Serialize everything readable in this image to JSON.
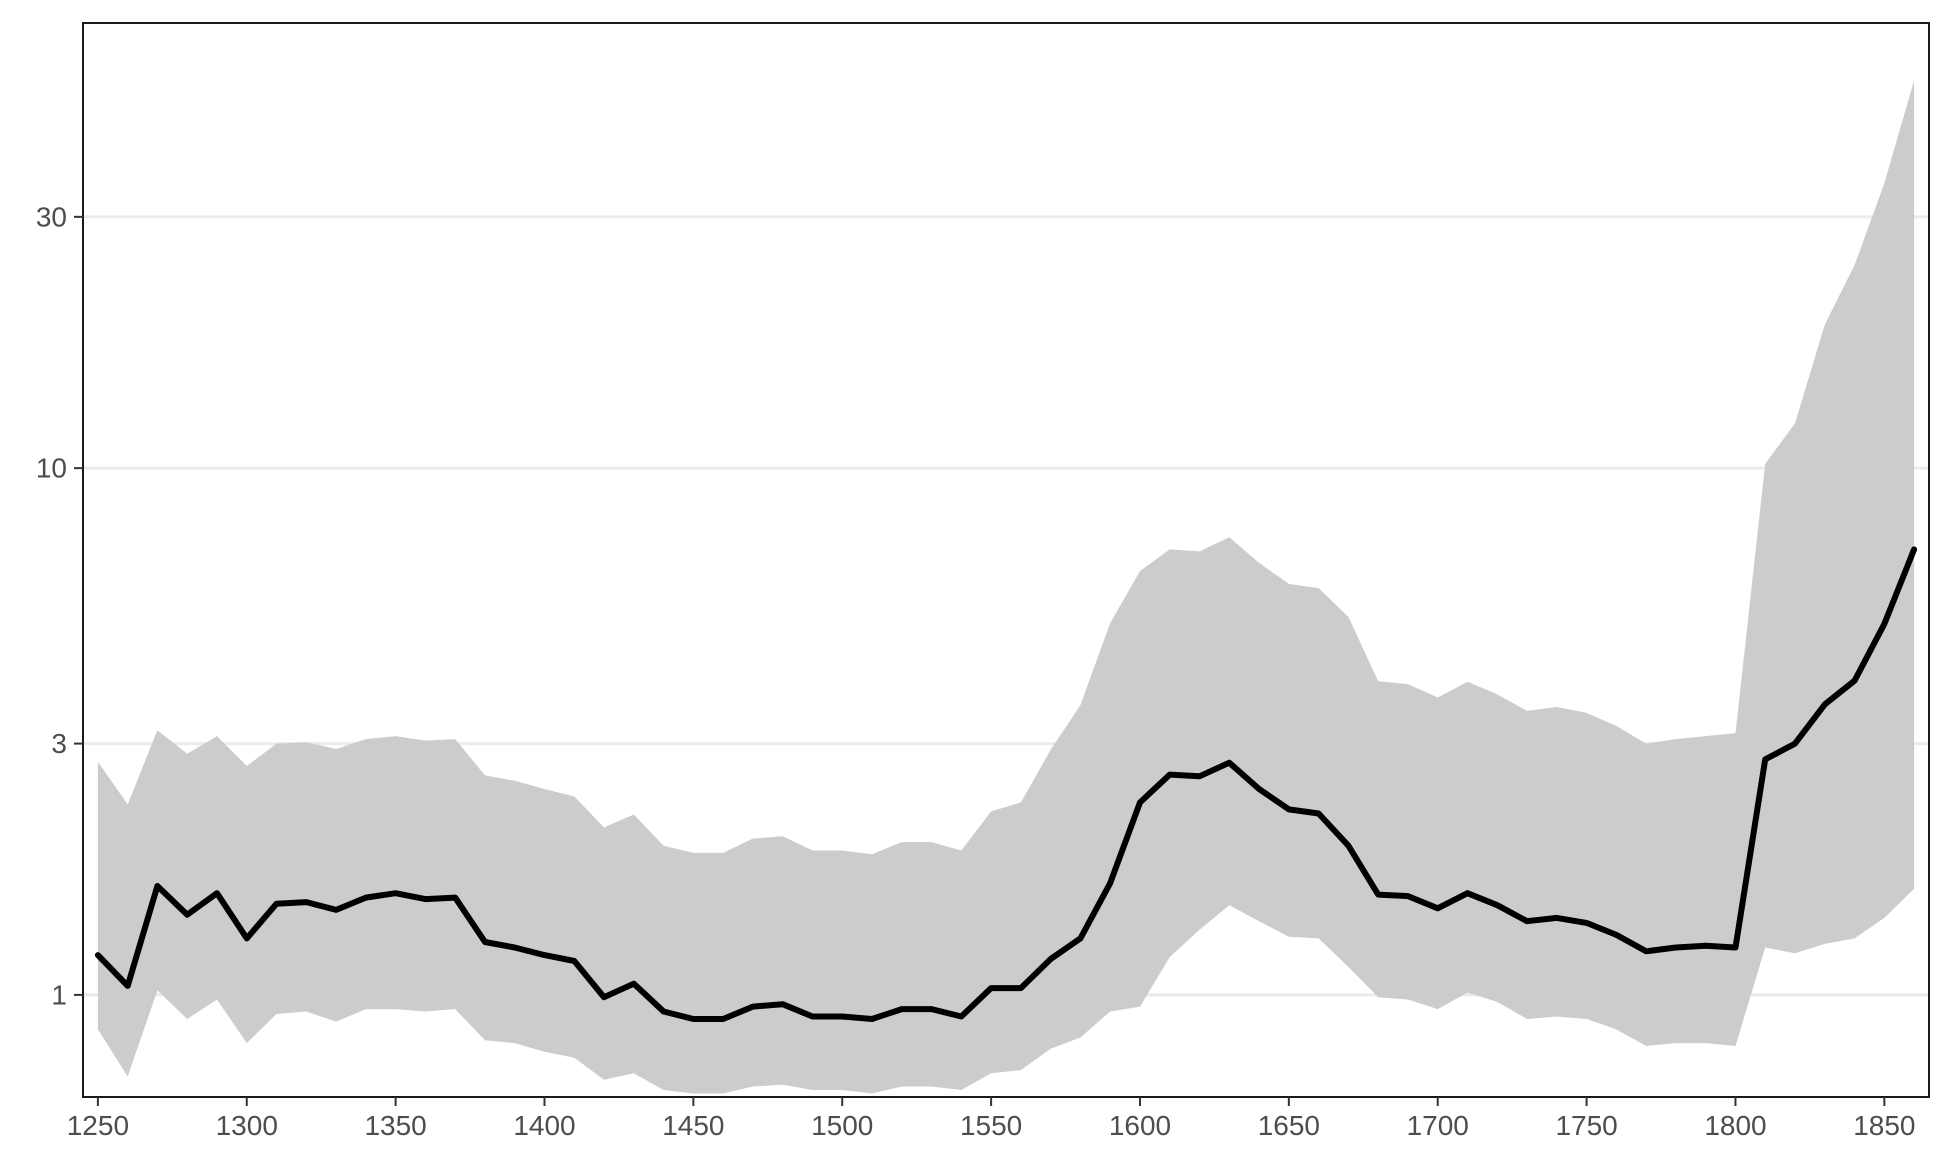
{
  "chart_data": {
    "type": "area",
    "title": "",
    "xlabel": "",
    "ylabel": "",
    "y_scale": "log",
    "xlim": [
      1245,
      1865
    ],
    "ylim": [
      0.64,
      70
    ],
    "grid": true,
    "legend": "none",
    "x_ticks": [
      1250,
      1300,
      1350,
      1400,
      1450,
      1500,
      1550,
      1600,
      1650,
      1700,
      1750,
      1800,
      1850
    ],
    "y_ticks": [
      1,
      3,
      10,
      30
    ],
    "colors": {
      "line": "#000000",
      "band": "#cccccc",
      "grid": "#ebebeb",
      "border": "#1a1a1a",
      "tick_text": "#4d4d4d"
    },
    "x": [
      1250,
      1260,
      1270,
      1280,
      1290,
      1300,
      1310,
      1320,
      1330,
      1340,
      1350,
      1360,
      1370,
      1380,
      1390,
      1400,
      1410,
      1420,
      1430,
      1440,
      1450,
      1460,
      1470,
      1480,
      1490,
      1500,
      1510,
      1520,
      1530,
      1540,
      1550,
      1560,
      1570,
      1580,
      1590,
      1600,
      1610,
      1620,
      1630,
      1640,
      1650,
      1660,
      1670,
      1680,
      1690,
      1700,
      1710,
      1720,
      1730,
      1740,
      1750,
      1760,
      1770,
      1780,
      1790,
      1800,
      1810,
      1820,
      1830,
      1840,
      1850,
      1860
    ],
    "series": [
      {
        "role": "line",
        "values": [
          1.19,
          1.04,
          1.61,
          1.42,
          1.56,
          1.28,
          1.49,
          1.5,
          1.45,
          1.53,
          1.56,
          1.52,
          1.53,
          1.26,
          1.23,
          1.19,
          1.16,
          0.99,
          1.05,
          0.93,
          0.9,
          0.9,
          0.95,
          0.96,
          0.91,
          0.91,
          0.9,
          0.94,
          0.94,
          0.91,
          1.03,
          1.03,
          1.17,
          1.28,
          1.63,
          2.32,
          2.62,
          2.6,
          2.76,
          2.46,
          2.25,
          2.21,
          1.92,
          1.55,
          1.54,
          1.46,
          1.56,
          1.48,
          1.38,
          1.4,
          1.37,
          1.3,
          1.21,
          1.23,
          1.24,
          1.23,
          2.8,
          3.0,
          3.56,
          3.95,
          5.06,
          7.01
        ]
      },
      {
        "role": "band_upper",
        "values": [
          2.77,
          2.3,
          3.18,
          2.87,
          3.1,
          2.72,
          3.0,
          3.02,
          2.93,
          3.06,
          3.1,
          3.04,
          3.06,
          2.61,
          2.55,
          2.46,
          2.38,
          2.08,
          2.2,
          1.92,
          1.86,
          1.86,
          1.98,
          2.0,
          1.88,
          1.88,
          1.85,
          1.95,
          1.95,
          1.88,
          2.23,
          2.32,
          2.92,
          3.55,
          5.08,
          6.38,
          7.01,
          6.95,
          7.39,
          6.61,
          6.03,
          5.92,
          5.22,
          3.94,
          3.89,
          3.67,
          3.93,
          3.72,
          3.46,
          3.52,
          3.43,
          3.24,
          3.0,
          3.06,
          3.1,
          3.14,
          10.19,
          12.16,
          18.73,
          24.3,
          34.7,
          54.5
        ]
      },
      {
        "role": "band_lower",
        "values": [
          0.86,
          0.7,
          1.02,
          0.9,
          0.98,
          0.81,
          0.92,
          0.93,
          0.89,
          0.94,
          0.94,
          0.93,
          0.94,
          0.82,
          0.81,
          0.78,
          0.76,
          0.69,
          0.71,
          0.66,
          0.65,
          0.65,
          0.67,
          0.675,
          0.66,
          0.66,
          0.65,
          0.67,
          0.67,
          0.66,
          0.71,
          0.72,
          0.79,
          0.83,
          0.93,
          0.95,
          1.18,
          1.33,
          1.48,
          1.38,
          1.29,
          1.28,
          1.13,
          0.99,
          0.98,
          0.94,
          1.01,
          0.97,
          0.9,
          0.91,
          0.9,
          0.86,
          0.8,
          0.81,
          0.81,
          0.8,
          1.23,
          1.2,
          1.25,
          1.28,
          1.4,
          1.59
        ]
      }
    ]
  }
}
